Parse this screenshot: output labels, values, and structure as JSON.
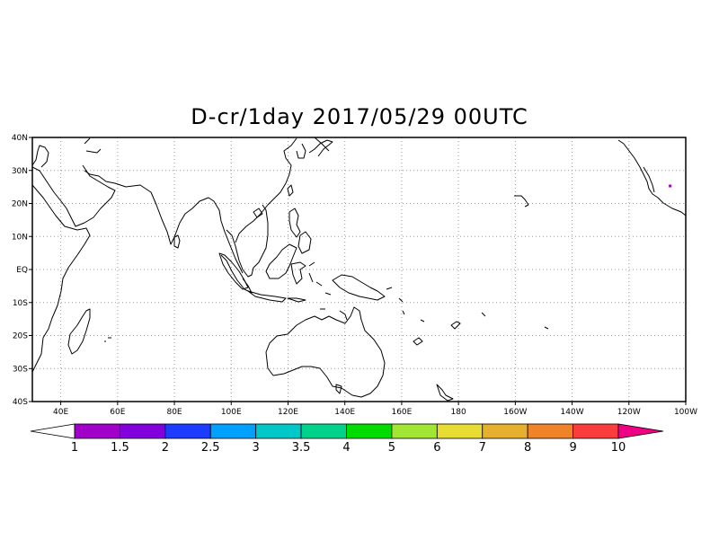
{
  "title": "D-cr/1day 2017/05/29 00UTC",
  "map": {
    "lat_labels": [
      "40N",
      "30N",
      "20N",
      "10N",
      "EQ",
      "10S",
      "20S",
      "30S",
      "40S"
    ],
    "lon_labels": [
      "40E",
      "60E",
      "80E",
      "100E",
      "120E",
      "140E",
      "160E",
      "180",
      "160W",
      "140W",
      "120W",
      "100W"
    ],
    "lon_range": [
      30,
      260
    ],
    "lat_range": [
      -40,
      40
    ],
    "grid": "dotted",
    "markers": [
      {
        "lon": 254.5,
        "lat": 25.3,
        "color": "#a000c8"
      }
    ]
  },
  "colorbar": {
    "labels": [
      "1",
      "1.5",
      "2",
      "2.5",
      "3",
      "3.5",
      "4",
      "5",
      "6",
      "7",
      "8",
      "9",
      "10"
    ],
    "colors": [
      "#a000c8",
      "#8200dc",
      "#1e3cff",
      "#00a0ff",
      "#00c8c8",
      "#00d28c",
      "#00dc00",
      "#a0e632",
      "#e6dc32",
      "#e6af2d",
      "#f08228",
      "#fa3c3c",
      "#f00082"
    ],
    "under_color": "#ffffff"
  }
}
